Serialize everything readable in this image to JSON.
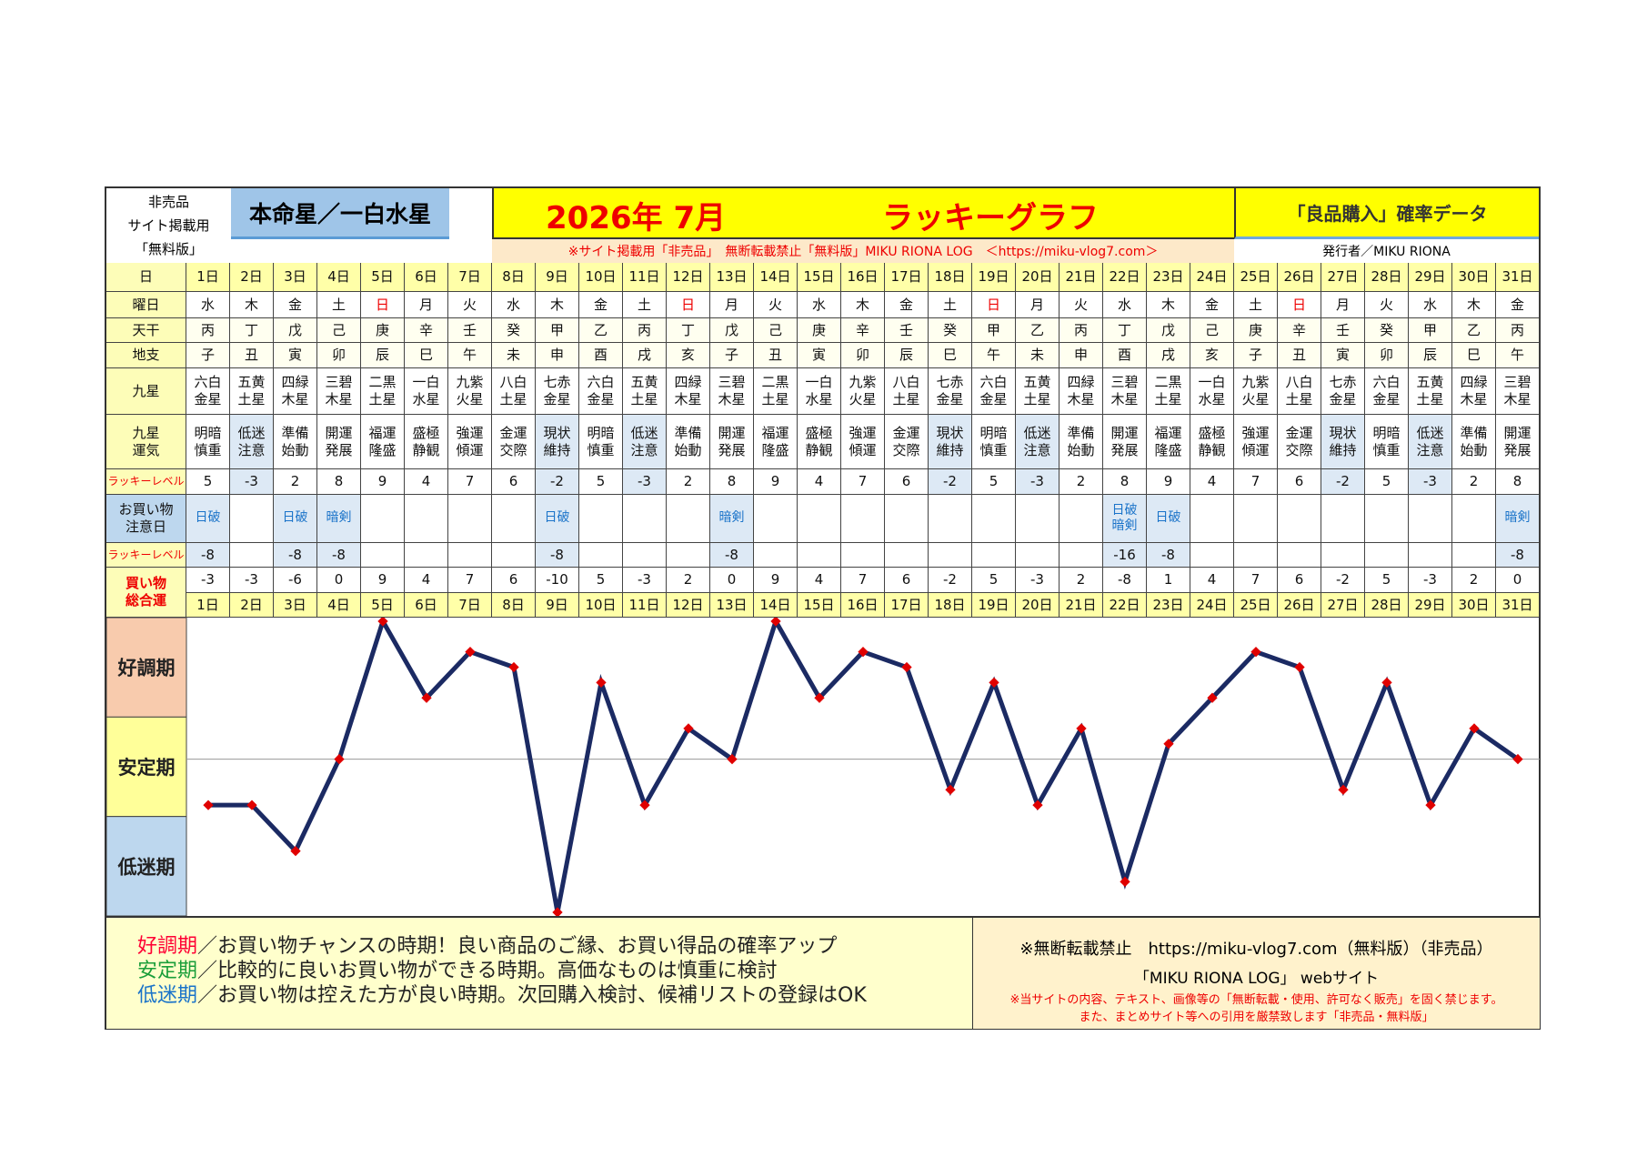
{
  "header": {
    "left_note": "非売品\nサイト掲載用\n「無料版」",
    "honmei": "本命星／一白水星",
    "date_title": "2026年 7月",
    "graph_title": "ラッキーグラフ",
    "right_title": "「良品購入」確率データ",
    "notice": "※サイト掲載用「非売品」　無断転載禁止「無料版」MIKU RIONA LOG　＜https://miku-vlog7.com＞",
    "publisher": "発行者／MIKU RIONA"
  },
  "row_labels": {
    "day": "日",
    "weekday": "曜日",
    "kan": "天干",
    "shi": "地支",
    "star": "九星",
    "fortune": "九星\n運気",
    "lucky": "ラッキーレベル",
    "caution": "お買い物\n注意日",
    "caution_lucky": "ラッキーレベル",
    "total": "買い物\n総合運"
  },
  "days": [
    "1日",
    "2日",
    "3日",
    "4日",
    "5日",
    "6日",
    "7日",
    "8日",
    "9日",
    "10日",
    "11日",
    "12日",
    "13日",
    "14日",
    "15日",
    "16日",
    "17日",
    "18日",
    "19日",
    "20日",
    "21日",
    "22日",
    "23日",
    "24日",
    "25日",
    "26日",
    "27日",
    "28日",
    "29日",
    "30日",
    "31日"
  ],
  "weekdays": [
    "水",
    "木",
    "金",
    "土",
    "日",
    "月",
    "火",
    "水",
    "木",
    "金",
    "土",
    "日",
    "月",
    "火",
    "水",
    "木",
    "金",
    "土",
    "日",
    "月",
    "火",
    "水",
    "木",
    "金",
    "土",
    "日",
    "月",
    "火",
    "水",
    "木",
    "金"
  ],
  "kan": [
    "丙",
    "丁",
    "戊",
    "己",
    "庚",
    "辛",
    "壬",
    "癸",
    "甲",
    "乙",
    "丙",
    "丁",
    "戊",
    "己",
    "庚",
    "辛",
    "壬",
    "癸",
    "甲",
    "乙",
    "丙",
    "丁",
    "戊",
    "己",
    "庚",
    "辛",
    "壬",
    "癸",
    "甲",
    "乙",
    "丙"
  ],
  "shi": [
    "子",
    "丑",
    "寅",
    "卯",
    "辰",
    "巳",
    "午",
    "未",
    "申",
    "酉",
    "戌",
    "亥",
    "子",
    "丑",
    "寅",
    "卯",
    "辰",
    "巳",
    "午",
    "未",
    "申",
    "酉",
    "戌",
    "亥",
    "子",
    "丑",
    "寅",
    "卯",
    "辰",
    "巳",
    "午"
  ],
  "stars": [
    "六白\n金星",
    "五黄\n土星",
    "四緑\n木星",
    "三碧\n木星",
    "二黒\n土星",
    "一白\n水星",
    "九紫\n火星",
    "八白\n土星",
    "七赤\n金星",
    "六白\n金星",
    "五黄\n土星",
    "四緑\n木星",
    "三碧\n木星",
    "二黒\n土星",
    "一白\n水星",
    "九紫\n火星",
    "八白\n土星",
    "七赤\n金星",
    "六白\n金星",
    "五黄\n土星",
    "四緑\n木星",
    "三碧\n木星",
    "二黒\n土星",
    "一白\n水星",
    "九紫\n火星",
    "八白\n土星",
    "七赤\n金星",
    "六白\n金星",
    "五黄\n土星",
    "四緑\n木星",
    "三碧\n木星"
  ],
  "fortunes": [
    "明暗\n慎重",
    "低迷\n注意",
    "準備\n始動",
    "開運\n発展",
    "福運\n隆盛",
    "盛極\n静観",
    "強運\n傾運",
    "金運\n交際",
    "現状\n維持",
    "明暗\n慎重",
    "低迷\n注意",
    "準備\n始動",
    "開運\n発展",
    "福運\n隆盛",
    "盛極\n静観",
    "強運\n傾運",
    "金運\n交際",
    "現状\n維持",
    "明暗\n慎重",
    "低迷\n注意",
    "準備\n始動",
    "開運\n発展",
    "福運\n隆盛",
    "盛極\n静観",
    "強運\n傾運",
    "金運\n交際",
    "現状\n維持",
    "明暗\n慎重",
    "低迷\n注意",
    "準備\n始動",
    "開運\n発展"
  ],
  "lucky": [
    5,
    -3,
    2,
    8,
    9,
    4,
    7,
    6,
    -2,
    5,
    -3,
    2,
    8,
    9,
    4,
    7,
    6,
    -2,
    5,
    -3,
    2,
    8,
    9,
    4,
    7,
    6,
    -2,
    5,
    -3,
    2,
    8
  ],
  "caution": [
    "日破",
    "",
    "日破",
    "暗剣",
    "",
    "",
    "",
    "",
    "日破",
    "",
    "",
    "",
    "暗剣",
    "",
    "",
    "",
    "",
    "",
    "",
    "",
    "",
    "日破\n暗剣",
    "日破",
    "",
    "",
    "",
    "",
    "",
    "",
    "",
    "暗剣"
  ],
  "caution_lucky": [
    "-8",
    "",
    "-8",
    "-8",
    "",
    "",
    "",
    "",
    "-8",
    "",
    "",
    "",
    "-8",
    "",
    "",
    "",
    "",
    "",
    "",
    "",
    "",
    "-16",
    "-8",
    "",
    "",
    "",
    "",
    "",
    "",
    "",
    "-8"
  ],
  "chart_data": {
    "type": "line",
    "title": "ラッキーグラフ",
    "x": [
      "1日",
      "2日",
      "3日",
      "4日",
      "5日",
      "6日",
      "7日",
      "8日",
      "9日",
      "10日",
      "11日",
      "12日",
      "13日",
      "14日",
      "15日",
      "16日",
      "17日",
      "18日",
      "19日",
      "20日",
      "21日",
      "22日",
      "23日",
      "24日",
      "25日",
      "26日",
      "27日",
      "28日",
      "29日",
      "30日",
      "31日"
    ],
    "values": [
      -3,
      -3,
      -6,
      0,
      9,
      4,
      7,
      6,
      -10,
      5,
      -3,
      2,
      0,
      9,
      4,
      7,
      6,
      -2,
      5,
      -3,
      2,
      -8,
      1,
      4,
      7,
      6,
      -2,
      5,
      -3,
      2,
      0
    ],
    "ylim": [
      -10,
      9
    ],
    "bands": [
      "好調期",
      "安定期",
      "低迷期"
    ],
    "line_color": "#1b2a63",
    "point_color": "#e00000"
  },
  "legend": {
    "good_label": "好調期",
    "good_text": "／お買い物チャンスの時期！良い商品のご縁、お買い得品の確率アップ",
    "stable_label": "安定期",
    "stable_text": "／比較的に良いお買い物ができる時期。高価なものは慎重に検討",
    "low_label": "低迷期",
    "low_text": "／お買い物は控えた方が良い時期。次回購入検討、候補リストの登録はOK",
    "copy1": "※無断転載禁止　https://miku-vlog7.com（無料版）（非売品）",
    "copy2": "「MIKU RIONA LOG」 webサイト",
    "copy3": "※当サイトの内容、テキスト、画像等の「無断転載・使用、許可なく販売」を固く禁じます。",
    "copy4": "また、まとめサイト等への引用を厳禁致します「非売品・無料版」"
  }
}
